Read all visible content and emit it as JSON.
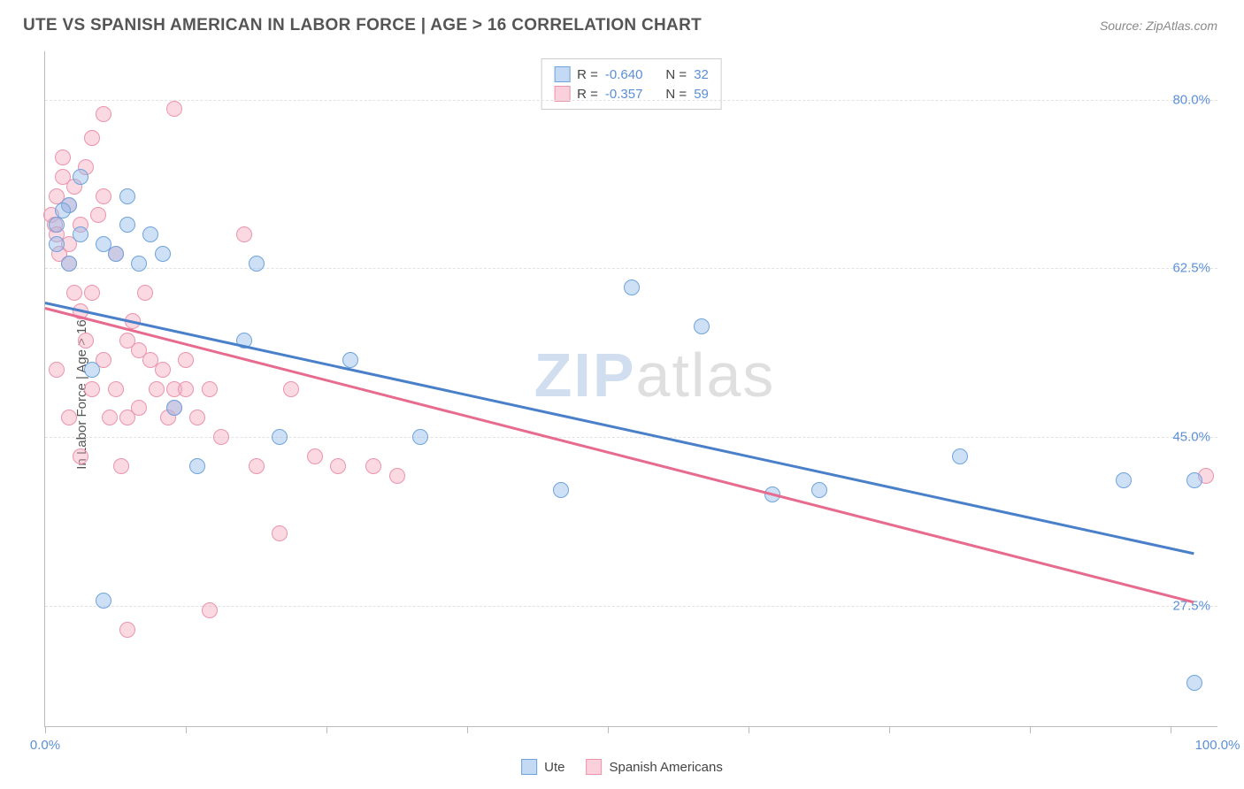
{
  "header": {
    "title": "UTE VS SPANISH AMERICAN IN LABOR FORCE | AGE > 16 CORRELATION CHART",
    "source": "Source: ZipAtlas.com"
  },
  "chart": {
    "type": "scatter",
    "ylabel": "In Labor Force | Age > 16",
    "xlim": [
      0,
      100
    ],
    "ylim": [
      15,
      85
    ],
    "yticks": [
      {
        "v": 80.0,
        "label": "80.0%"
      },
      {
        "v": 62.5,
        "label": "62.5%"
      },
      {
        "v": 45.0,
        "label": "45.0%"
      },
      {
        "v": 27.5,
        "label": "27.5%"
      }
    ],
    "xticks": [
      0,
      12,
      24,
      36,
      48,
      60,
      72,
      84,
      96
    ],
    "xtick_labels": {
      "min": "0.0%",
      "max": "100.0%"
    },
    "grid_color": "#e2e2e2",
    "background_color": "#ffffff",
    "point_radius": 9,
    "point_border_width": 1.5,
    "series": [
      {
        "name": "Ute",
        "color_fill": "rgba(147,186,233,0.45)",
        "color_stroke": "#6ea3dd",
        "R": "-0.640",
        "N": "32",
        "trend": {
          "x1": 0,
          "y1": 59.0,
          "x2": 98,
          "y2": 33.0,
          "color": "#4a80c9",
          "width": 2.5
        },
        "points": [
          [
            1,
            67
          ],
          [
            1,
            65
          ],
          [
            2,
            63
          ],
          [
            2,
            69
          ],
          [
            3,
            66
          ],
          [
            4,
            52
          ],
          [
            5,
            65
          ],
          [
            6,
            64
          ],
          [
            7,
            67
          ],
          [
            8,
            63
          ],
          [
            9,
            66
          ],
          [
            11,
            48
          ],
          [
            13,
            42
          ],
          [
            17,
            55
          ],
          [
            18,
            63
          ],
          [
            20,
            45
          ],
          [
            26,
            53
          ],
          [
            32,
            45
          ],
          [
            50,
            60.5
          ],
          [
            44,
            39.5
          ],
          [
            56,
            56.5
          ],
          [
            62,
            39
          ],
          [
            66,
            39.5
          ],
          [
            78,
            43
          ],
          [
            92,
            40.5
          ],
          [
            98,
            40.5
          ],
          [
            98,
            19.5
          ],
          [
            5,
            28
          ],
          [
            7,
            70
          ],
          [
            10,
            64
          ],
          [
            3,
            72
          ],
          [
            1.5,
            68.5
          ]
        ]
      },
      {
        "name": "Spanish Americans",
        "color_fill": "rgba(244,170,190,0.45)",
        "color_stroke": "#ec94ac",
        "R": "-0.357",
        "N": "59",
        "trend": {
          "x1": 0,
          "y1": 58.5,
          "x2": 98,
          "y2": 28.0,
          "color": "#e76b8e",
          "width": 2.5
        },
        "points": [
          [
            0.5,
            68
          ],
          [
            0.8,
            67
          ],
          [
            1,
            70
          ],
          [
            1,
            66
          ],
          [
            1.2,
            64
          ],
          [
            1.5,
            72
          ],
          [
            1.5,
            74
          ],
          [
            2,
            69
          ],
          [
            2,
            65
          ],
          [
            2,
            63
          ],
          [
            2.5,
            71
          ],
          [
            2.5,
            60
          ],
          [
            3,
            67
          ],
          [
            3,
            58
          ],
          [
            3.5,
            73
          ],
          [
            3.5,
            55
          ],
          [
            4,
            76
          ],
          [
            4,
            60
          ],
          [
            4,
            50
          ],
          [
            4.5,
            68
          ],
          [
            5,
            78.5
          ],
          [
            5,
            70
          ],
          [
            5,
            53
          ],
          [
            5.5,
            47
          ],
          [
            6,
            64
          ],
          [
            6,
            50
          ],
          [
            6.5,
            42
          ],
          [
            7,
            55
          ],
          [
            7,
            47
          ],
          [
            7.5,
            57
          ],
          [
            8,
            54
          ],
          [
            8,
            48
          ],
          [
            8.5,
            60
          ],
          [
            9,
            53
          ],
          [
            9.5,
            50
          ],
          [
            10,
            52
          ],
          [
            10.5,
            47
          ],
          [
            11,
            79
          ],
          [
            11,
            50
          ],
          [
            11,
            48
          ],
          [
            12,
            53
          ],
          [
            12,
            50
          ],
          [
            13,
            47
          ],
          [
            14,
            50
          ],
          [
            15,
            45
          ],
          [
            17,
            66
          ],
          [
            18,
            42
          ],
          [
            20,
            35
          ],
          [
            21,
            50
          ],
          [
            23,
            43
          ],
          [
            25,
            42
          ],
          [
            28,
            42
          ],
          [
            30,
            41
          ],
          [
            14,
            27
          ],
          [
            7,
            25
          ],
          [
            3,
            43
          ],
          [
            2,
            47
          ],
          [
            1,
            52
          ],
          [
            99,
            41
          ]
        ]
      }
    ],
    "legend": {
      "items": [
        {
          "label": "Ute",
          "fill": "rgba(147,186,233,0.55)",
          "stroke": "#6ea3dd"
        },
        {
          "label": "Spanish Americans",
          "fill": "rgba(244,170,190,0.55)",
          "stroke": "#ec94ac"
        }
      ]
    },
    "watermark": {
      "part1": "ZIP",
      "part2": "atlas"
    }
  }
}
